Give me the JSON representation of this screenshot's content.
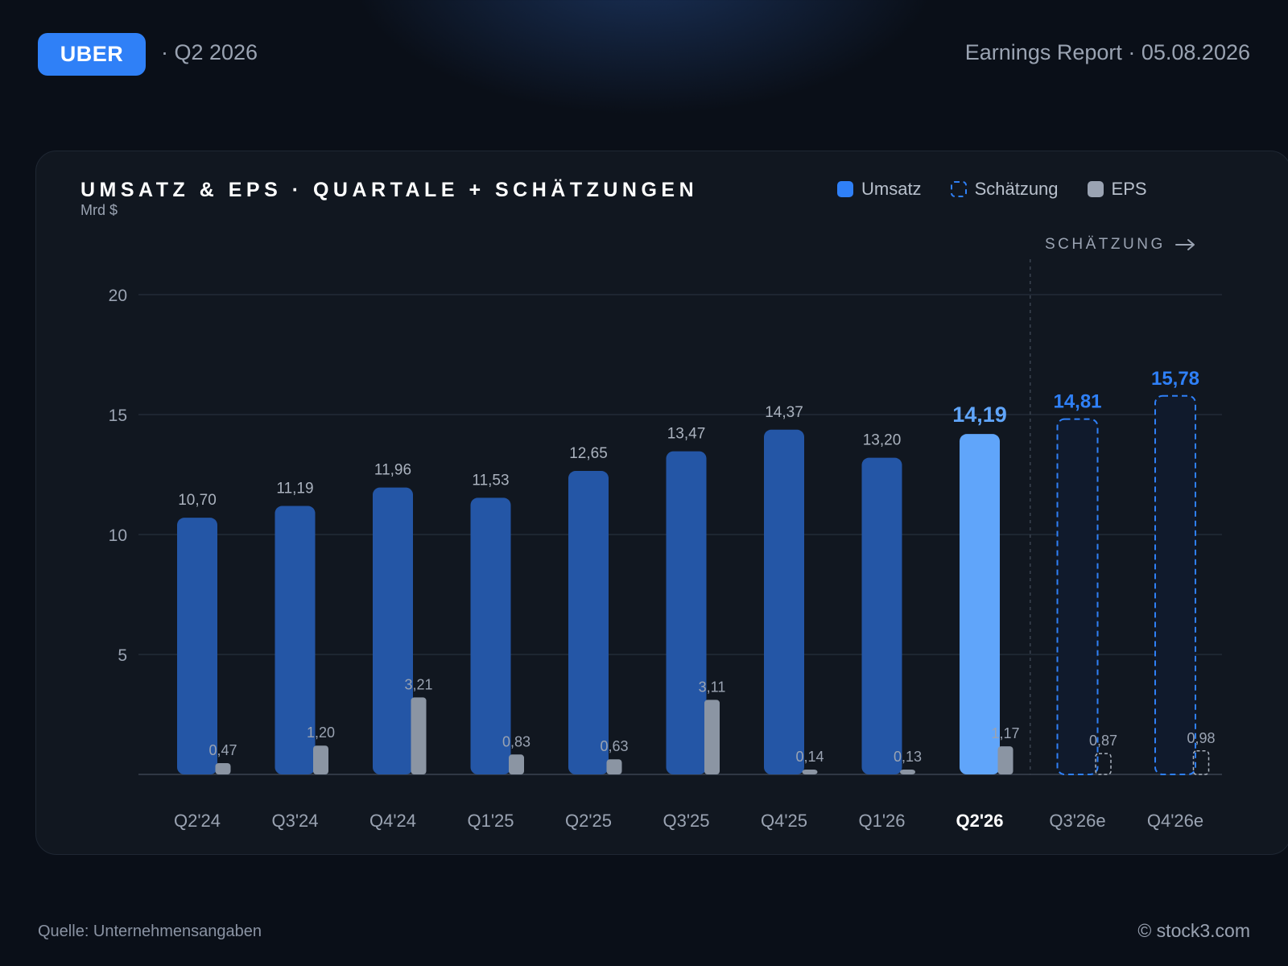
{
  "header": {
    "ticker": "UBER",
    "period": "· Q2 2026",
    "report": "Earnings Report · 05.08.2026"
  },
  "footer": {
    "source": "Quelle: Unternehmensangaben",
    "copyright": "© stock3.com"
  },
  "estimate_marker": {
    "label": "SCHÄTZUNG",
    "icon": "arrow-right-icon"
  },
  "colors": {
    "revenue": "#2456a6",
    "revenue_current": "#60a5fa",
    "estimate": "#2f80f7",
    "eps": "#8b95a3"
  },
  "chart_data": {
    "type": "bar",
    "title": "UMSATZ & EPS · QUARTALE + SCHÄTZUNGEN",
    "ylabel": "Mrd $",
    "ylim": [
      0,
      20
    ],
    "yticks": [
      5,
      10,
      15,
      20
    ],
    "grid": true,
    "legend_position": "top-right",
    "legend": [
      "Umsatz",
      "Schätzung",
      "EPS"
    ],
    "categories": [
      "Q2'24",
      "Q3'24",
      "Q4'24",
      "Q1'25",
      "Q2'25",
      "Q3'25",
      "Q4'25",
      "Q1'26",
      "Q2'26",
      "Q3'26e",
      "Q4'26e"
    ],
    "highlight_category": "Q2'26",
    "estimate_categories": [
      "Q3'26e",
      "Q4'26e"
    ],
    "series": [
      {
        "name": "Umsatz",
        "values": [
          10.7,
          11.19,
          11.96,
          11.53,
          12.65,
          13.47,
          14.37,
          13.2,
          14.19,
          14.81,
          15.78
        ],
        "labels": [
          "10,70",
          "11,19",
          "11,96",
          "11,53",
          "12,65",
          "13,47",
          "14,37",
          "13,20",
          "14,19",
          "14,81",
          "15,78"
        ]
      },
      {
        "name": "EPS",
        "values": [
          0.47,
          1.2,
          3.21,
          0.83,
          0.63,
          3.11,
          0.14,
          0.13,
          1.17,
          0.87,
          0.98
        ],
        "labels": [
          "0,47",
          "1,20",
          "3,21",
          "0,83",
          "0,63",
          "3,11",
          "0,14",
          "0,13",
          "1,17",
          "0,87",
          "0,98"
        ]
      }
    ]
  }
}
